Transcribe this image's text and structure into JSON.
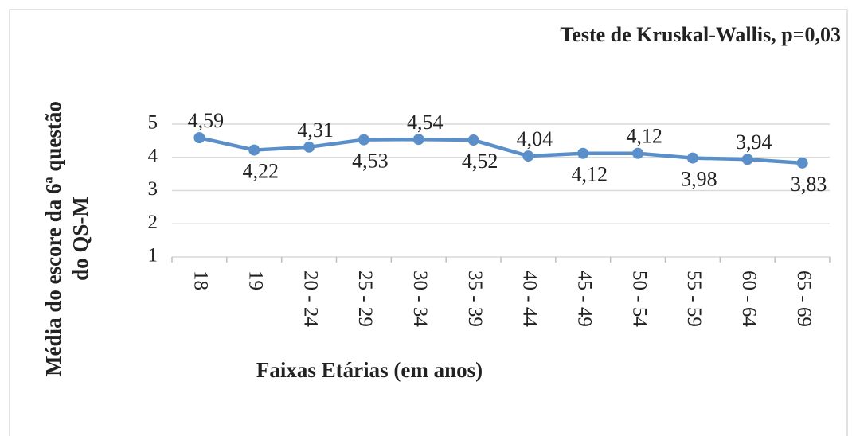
{
  "chart_data": {
    "type": "line",
    "annotation": "Teste de Kruskal-Wallis, p=0,03",
    "y_label": [
      "Média do escore da 6ª questão",
      "do QS-M"
    ],
    "x_label": "Faixas Etárias (em anos)",
    "categories": [
      "18",
      "19",
      "20 - 24",
      "25 - 29",
      "30 - 34",
      "35 - 39",
      "40 - 44",
      "45 - 49",
      "50 - 54",
      "55 - 59",
      "60 - 64",
      "65 - 69"
    ],
    "series": [
      {
        "name": "Média",
        "color": "#5b8fc9",
        "values": [
          4.59,
          4.22,
          4.31,
          4.53,
          4.54,
          4.52,
          4.04,
          4.12,
          4.12,
          3.98,
          3.94,
          3.83
        ],
        "value_labels": [
          "4,59",
          "4,22",
          "4,31",
          "4,53",
          "4,54",
          "4,52",
          "4,04",
          "4,12",
          "4,12",
          "3,98",
          "3,94",
          "3,83"
        ]
      }
    ],
    "ylim": [
      1,
      5
    ],
    "yticks": [
      1,
      2,
      3,
      4,
      5
    ],
    "grid": true
  }
}
